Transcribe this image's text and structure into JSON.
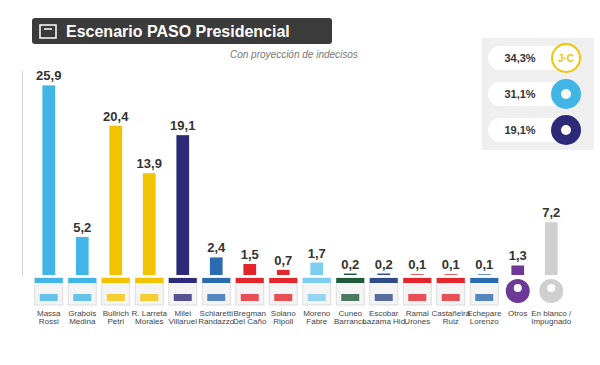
{
  "chart_data": {
    "type": "bar",
    "title": "Escenario PASO Presidencial",
    "subtitle": "Con proyección de indecisos",
    "categories": [
      "Massa\nRossi",
      "Grabois\nMedina",
      "Bullrich\nPetri",
      "R. Larreta\nMorales",
      "Milei\nVillaruel",
      "Schiaretti\nRandazzo",
      "Bregman\nDel Caño",
      "Solano\nRipoll",
      "Moreno\nFabre",
      "Cuneo\nBarranco",
      "Escobar\nLazama Hid",
      "Ramal\nUrones",
      "Castañeira\nRuiz",
      "Echepare\nLorenzo",
      "Otros",
      "En blanco /\nImpugnado"
    ],
    "values": [
      25.9,
      5.2,
      20.4,
      13.9,
      19.1,
      2.4,
      1.5,
      0.7,
      1.7,
      0.2,
      0.2,
      0.1,
      0.1,
      0.1,
      1.3,
      7.2
    ],
    "value_labels": [
      "25,9",
      "5,2",
      "20,4",
      "13,9",
      "19,1",
      "2,4",
      "1,5",
      "0,7",
      "1,7",
      "0,2",
      "0,2",
      "0,1",
      "0,1",
      "0,1",
      "1,3",
      "7,2"
    ],
    "colors": [
      "#41b6e6",
      "#41b6e6",
      "#f2c300",
      "#f2c300",
      "#2d2a78",
      "#2b6cb0",
      "#e3262c",
      "#e3262c",
      "#7ccdf0",
      "#1f5a3a",
      "#2f4a8a",
      "#e3262c",
      "#e3262c",
      "#2b6cb0",
      "#6c3a96",
      "#cfcfcf"
    ],
    "ylim": [
      0,
      28
    ],
    "data_labels": true,
    "tick_labels": false,
    "grid": false,
    "summary": {
      "values": [
        34.3,
        31.1,
        19.1
      ],
      "value_labels": [
        "34,3%",
        "31,1%",
        "19,1%"
      ],
      "colors": [
        "#f2c300",
        "#41b6e6",
        "#2d2a78"
      ],
      "logos": [
        "J·C",
        null,
        null
      ]
    }
  }
}
